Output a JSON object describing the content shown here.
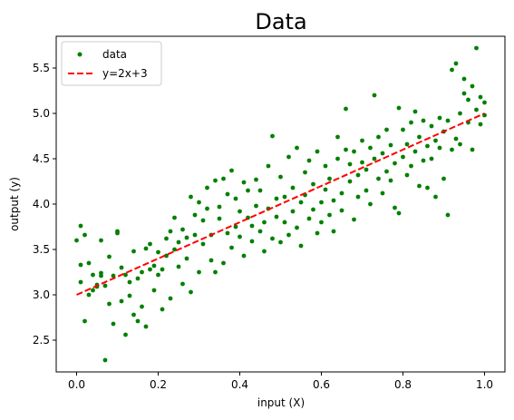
{
  "chart_data": {
    "type": "scatter",
    "title": "Data",
    "xlabel": "input (X)",
    "ylabel": "output (y)",
    "xlim": [
      -0.05,
      1.05
    ],
    "ylim": [
      2.15,
      5.85
    ],
    "xticks": [
      0.0,
      0.2,
      0.4,
      0.6,
      0.8,
      1.0
    ],
    "xtick_labels": [
      "0.0",
      "0.2",
      "0.4",
      "0.6",
      "0.8",
      "1.0"
    ],
    "yticks": [
      2.5,
      3.0,
      3.5,
      4.0,
      4.5,
      5.0,
      5.5
    ],
    "ytick_labels": [
      "2.5",
      "3.0",
      "3.5",
      "4.0",
      "4.5",
      "5.0",
      "5.5"
    ],
    "grid": false,
    "legend": {
      "position": "upper-left",
      "entries": [
        {
          "label": "data",
          "kind": "marker",
          "color": "#008000"
        },
        {
          "label": "y=2x+3",
          "kind": "dashed-line",
          "color": "#ff0000"
        }
      ]
    },
    "series": [
      {
        "name": "data",
        "kind": "scatter",
        "color": "#008000",
        "points": [
          [
            0.0,
            3.6
          ],
          [
            0.01,
            3.33
          ],
          [
            0.01,
            3.14
          ],
          [
            0.01,
            3.76
          ],
          [
            0.02,
            2.71
          ],
          [
            0.02,
            3.66
          ],
          [
            0.03,
            3.35
          ],
          [
            0.03,
            3.0
          ],
          [
            0.04,
            3.05
          ],
          [
            0.04,
            3.22
          ],
          [
            0.05,
            3.11
          ],
          [
            0.05,
            3.09
          ],
          [
            0.06,
            3.24
          ],
          [
            0.06,
            3.21
          ],
          [
            0.06,
            3.6
          ],
          [
            0.07,
            3.1
          ],
          [
            0.07,
            2.28
          ],
          [
            0.08,
            2.9
          ],
          [
            0.08,
            3.42
          ],
          [
            0.09,
            3.21
          ],
          [
            0.09,
            2.68
          ],
          [
            0.1,
            3.68
          ],
          [
            0.1,
            3.7
          ],
          [
            0.11,
            2.93
          ],
          [
            0.11,
            3.3
          ],
          [
            0.12,
            3.22
          ],
          [
            0.12,
            2.56
          ],
          [
            0.13,
            3.14
          ],
          [
            0.13,
            2.99
          ],
          [
            0.14,
            3.48
          ],
          [
            0.14,
            2.78
          ],
          [
            0.15,
            2.71
          ],
          [
            0.15,
            3.18
          ],
          [
            0.16,
            3.25
          ],
          [
            0.16,
            2.87
          ],
          [
            0.17,
            3.51
          ],
          [
            0.17,
            2.65
          ],
          [
            0.18,
            3.28
          ],
          [
            0.18,
            3.56
          ],
          [
            0.19,
            3.32
          ],
          [
            0.19,
            3.05
          ],
          [
            0.2,
            3.22
          ],
          [
            0.2,
            3.47
          ],
          [
            0.21,
            2.84
          ],
          [
            0.21,
            3.28
          ],
          [
            0.22,
            3.43
          ],
          [
            0.22,
            3.62
          ],
          [
            0.23,
            2.96
          ],
          [
            0.23,
            3.7
          ],
          [
            0.24,
            3.5
          ],
          [
            0.24,
            3.85
          ],
          [
            0.25,
            3.31
          ],
          [
            0.25,
            3.58
          ],
          [
            0.26,
            3.12
          ],
          [
            0.26,
            3.72
          ],
          [
            0.27,
            3.4
          ],
          [
            0.27,
            3.63
          ],
          [
            0.28,
            3.03
          ],
          [
            0.28,
            4.08
          ],
          [
            0.29,
            3.88
          ],
          [
            0.29,
            3.66
          ],
          [
            0.3,
            3.25
          ],
          [
            0.3,
            4.02
          ],
          [
            0.31,
            3.82
          ],
          [
            0.31,
            3.56
          ],
          [
            0.32,
            4.18
          ],
          [
            0.32,
            3.95
          ],
          [
            0.33,
            3.66
          ],
          [
            0.33,
            3.38
          ],
          [
            0.34,
            4.26
          ],
          [
            0.34,
            3.25
          ],
          [
            0.35,
            3.84
          ],
          [
            0.35,
            3.97
          ],
          [
            0.36,
            4.28
          ],
          [
            0.36,
            3.35
          ],
          [
            0.37,
            4.11
          ],
          [
            0.37,
            3.68
          ],
          [
            0.38,
            4.37
          ],
          [
            0.38,
            3.52
          ],
          [
            0.39,
            3.75
          ],
          [
            0.39,
            4.06
          ],
          [
            0.4,
            3.92
          ],
          [
            0.4,
            3.64
          ],
          [
            0.41,
            4.24
          ],
          [
            0.41,
            3.43
          ],
          [
            0.42,
            3.85
          ],
          [
            0.42,
            4.15
          ],
          [
            0.43,
            3.76
          ],
          [
            0.43,
            3.59
          ],
          [
            0.44,
            4.27
          ],
          [
            0.44,
            3.98
          ],
          [
            0.45,
            3.7
          ],
          [
            0.45,
            4.15
          ],
          [
            0.46,
            3.8
          ],
          [
            0.46,
            3.48
          ],
          [
            0.47,
            4.42
          ],
          [
            0.47,
            3.95
          ],
          [
            0.48,
            3.62
          ],
          [
            0.48,
            4.75
          ],
          [
            0.49,
            4.06
          ],
          [
            0.49,
            3.86
          ],
          [
            0.5,
            4.3
          ],
          [
            0.5,
            3.58
          ],
          [
            0.51,
            4.08
          ],
          [
            0.51,
            3.8
          ],
          [
            0.52,
            4.52
          ],
          [
            0.52,
            3.66
          ],
          [
            0.53,
            4.18
          ],
          [
            0.53,
            3.92
          ],
          [
            0.54,
            4.62
          ],
          [
            0.54,
            3.74
          ],
          [
            0.55,
            4.02
          ],
          [
            0.55,
            3.54
          ],
          [
            0.56,
            4.35
          ],
          [
            0.56,
            4.1
          ],
          [
            0.57,
            3.84
          ],
          [
            0.57,
            4.48
          ],
          [
            0.58,
            4.22
          ],
          [
            0.58,
            3.94
          ],
          [
            0.59,
            3.68
          ],
          [
            0.59,
            4.58
          ],
          [
            0.6,
            4.02
          ],
          [
            0.6,
            3.8
          ],
          [
            0.61,
            4.42
          ],
          [
            0.61,
            4.16
          ],
          [
            0.62,
            3.88
          ],
          [
            0.62,
            4.28
          ],
          [
            0.63,
            4.04
          ],
          [
            0.63,
            3.7
          ],
          [
            0.64,
            4.5
          ],
          [
            0.64,
            4.74
          ],
          [
            0.65,
            4.12
          ],
          [
            0.65,
            3.93
          ],
          [
            0.66,
            4.6
          ],
          [
            0.66,
            5.05
          ],
          [
            0.67,
            4.25
          ],
          [
            0.67,
            4.44
          ],
          [
            0.68,
            3.83
          ],
          [
            0.68,
            4.58
          ],
          [
            0.69,
            4.32
          ],
          [
            0.69,
            4.08
          ],
          [
            0.7,
            4.7
          ],
          [
            0.7,
            4.46
          ],
          [
            0.71,
            4.15
          ],
          [
            0.71,
            4.38
          ],
          [
            0.72,
            4.62
          ],
          [
            0.72,
            4.0
          ],
          [
            0.73,
            5.2
          ],
          [
            0.73,
            4.5
          ],
          [
            0.74,
            4.28
          ],
          [
            0.74,
            4.74
          ],
          [
            0.75,
            4.12
          ],
          [
            0.75,
            4.56
          ],
          [
            0.76,
            4.36
          ],
          [
            0.76,
            4.82
          ],
          [
            0.77,
            4.26
          ],
          [
            0.77,
            4.65
          ],
          [
            0.78,
            4.45
          ],
          [
            0.78,
            3.96
          ],
          [
            0.79,
            5.06
          ],
          [
            0.79,
            3.9
          ],
          [
            0.8,
            4.52
          ],
          [
            0.8,
            4.82
          ],
          [
            0.81,
            4.32
          ],
          [
            0.81,
            4.66
          ],
          [
            0.82,
            4.42
          ],
          [
            0.82,
            4.9
          ],
          [
            0.83,
            4.58
          ],
          [
            0.83,
            5.02
          ],
          [
            0.84,
            4.2
          ],
          [
            0.84,
            4.74
          ],
          [
            0.85,
            4.48
          ],
          [
            0.85,
            4.92
          ],
          [
            0.86,
            4.64
          ],
          [
            0.86,
            4.18
          ],
          [
            0.87,
            4.86
          ],
          [
            0.87,
            4.5
          ],
          [
            0.88,
            4.7
          ],
          [
            0.88,
            4.08
          ],
          [
            0.89,
            4.95
          ],
          [
            0.89,
            4.62
          ],
          [
            0.9,
            4.8
          ],
          [
            0.9,
            4.28
          ],
          [
            0.91,
            4.92
          ],
          [
            0.91,
            3.88
          ],
          [
            0.92,
            4.6
          ],
          [
            0.92,
            5.48
          ],
          [
            0.93,
            4.72
          ],
          [
            0.93,
            5.55
          ],
          [
            0.94,
            5.0
          ],
          [
            0.94,
            4.66
          ],
          [
            0.95,
            5.22
          ],
          [
            0.95,
            5.38
          ],
          [
            0.96,
            4.9
          ],
          [
            0.96,
            5.15
          ],
          [
            0.97,
            5.3
          ],
          [
            0.97,
            4.6
          ],
          [
            0.98,
            5.72
          ],
          [
            0.98,
            5.04
          ],
          [
            0.99,
            4.88
          ],
          [
            0.99,
            5.18
          ],
          [
            1.0,
            5.12
          ],
          [
            1.0,
            4.98
          ]
        ]
      },
      {
        "name": "y=2x+3",
        "kind": "line",
        "style": "dashed",
        "color": "#ff0000",
        "points": [
          [
            0.0,
            3.0
          ],
          [
            1.0,
            5.0
          ]
        ]
      }
    ]
  }
}
